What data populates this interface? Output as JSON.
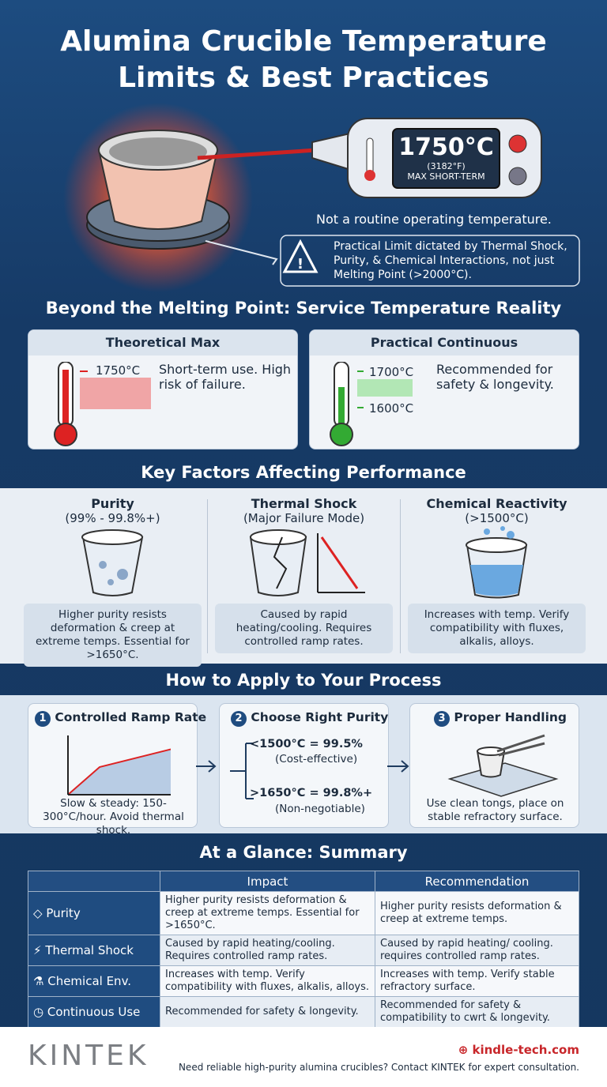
{
  "header": {
    "title_lines": [
      "Alumina Crucible Temperature",
      "Limits & Best Practices"
    ]
  },
  "hero": {
    "display_temp": "1750°C",
    "display_f": "(3182°F)",
    "display_caption": "MAX SHORT-TERM",
    "note": "Not a routine operating temperature.",
    "warning": "Practical Limit dictated by Thermal Shock, Purity, & Chemical Interactions, not just Melting Point (>2000°C)."
  },
  "service": {
    "title": "Beyond the Melting Point: Service Temperature Reality",
    "cards": [
      {
        "title": "Theoretical Max",
        "temps": [
          "1750°C"
        ],
        "text": "Short-term use. High risk of failure."
      },
      {
        "title": "Practical Continuous",
        "temps": [
          "1700°C",
          "1600°C"
        ],
        "text": "Recommended for safety & longevity."
      }
    ]
  },
  "factors": {
    "title": "Key Factors Affecting Performance",
    "items": [
      {
        "title": "Purity",
        "subtitle": "(99% - 99.8%+)",
        "text": "Higher purity resists deformation & creep at extreme temps. Essential for >1650°C."
      },
      {
        "title": "Thermal Shock",
        "subtitle": "(Major Failure Mode)",
        "text": "Caused by rapid heating/cooling. Requires controlled ramp rates."
      },
      {
        "title": "Chemical Reactivity",
        "subtitle": "(>1500°C)",
        "text": "Increases with temp. Verify compatibility with fluxes, alkalis, alloys."
      }
    ]
  },
  "process": {
    "title": "How to Apply to Your Process",
    "steps": [
      {
        "number": "1",
        "title": "Controlled Ramp Rate",
        "text": "Slow & steady: 150-300°C/hour. Avoid thermal shock."
      },
      {
        "number": "2",
        "title": "Choose Right Purity",
        "options": [
          {
            "rule": "<1500°C = 99.5%",
            "note": "(Cost-effective)"
          },
          {
            "rule": ">1650°C = 99.8%+",
            "note": "(Non-negotiable)"
          }
        ]
      },
      {
        "number": "3",
        "title": "Proper Handling",
        "text": "Use clean tongs, place on stable refractory surface."
      }
    ]
  },
  "summary": {
    "title": "At a Glance: Summary",
    "columns": [
      "Impact",
      "Recommendation"
    ],
    "rows": [
      [
        "Purity",
        "Higher purity resists deformation & creep at extreme temps. Essential for >1650°C.",
        "Higher purity resists deformation & creep at extreme temps."
      ],
      [
        "Thermal Shock",
        "Caused by rapid heating/cooling. Requires controlled ramp rates.",
        "Caused by rapid heating/ cooling. requires controlled ramp rates."
      ],
      [
        "Chemical Env.",
        "Increases with temp. Verify compatibility with fluxes, alkalis, alloys.",
        "Increases with temp. Verify stable refractory surface."
      ],
      [
        "Continuous Use",
        "Recommended for safety & longevity.",
        "Recommended for safety & compatibility to cwrt & longevity."
      ]
    ]
  },
  "footer": {
    "brand": "KINTEK",
    "url": "kindle-tech.com",
    "text": "Need reliable high-purity alumina crucibles? Contact KINTEK for expert consultation."
  }
}
